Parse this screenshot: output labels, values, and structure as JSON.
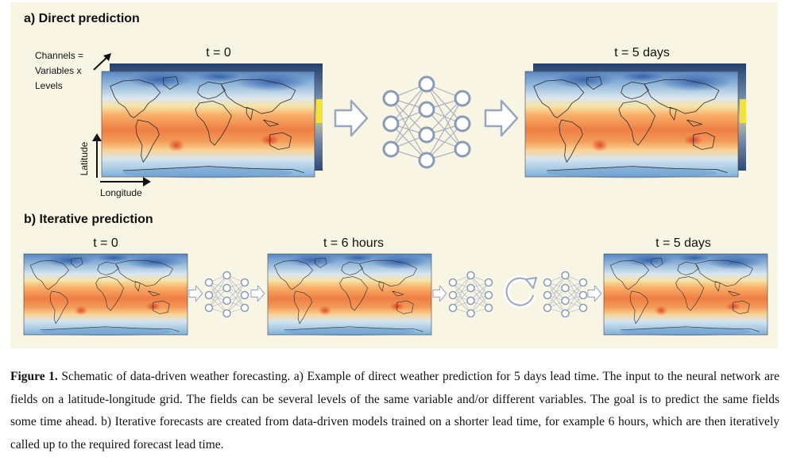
{
  "panel_a": {
    "title": "a) Direct prediction",
    "input_time_label": "t = 0",
    "output_time_label": "t = 5 days",
    "channels_label_line1": "Channels =",
    "channels_label_line2": "Variables x",
    "channels_label_line3": "Levels",
    "latitude_label": "Latitude",
    "longitude_label": "Longitude"
  },
  "panel_b": {
    "title": "b) Iterative prediction",
    "time_label_1": "t = 0",
    "time_label_2": "t = 6 hours",
    "time_label_3": "t = 5 days"
  },
  "caption": {
    "label": "Figure 1.",
    "text": " Schematic of data-driven weather forecasting. a) Example of direct weather prediction for 5 days lead time. The input to the neural network are fields on a latitude-longitude grid. The fields can be several levels of the same variable and/or different variables. The goal is to predict the same fields some time ahead. b) Iterative forecasts are created from data-driven models trained on a shorter lead time, for example 6 hours, which are then iteratively called up to the required forecast lead time."
  },
  "colors": {
    "panel_background": "#f8f5e4",
    "network_node": "#8a9bb8",
    "arrow_outline": "#9aa6bf",
    "cold": "#3b6fb6",
    "warm": "#e8502a"
  },
  "icons": [
    "neural-network-icon",
    "right-arrow-icon",
    "cycle-arrow-icon",
    "world-map-field"
  ]
}
